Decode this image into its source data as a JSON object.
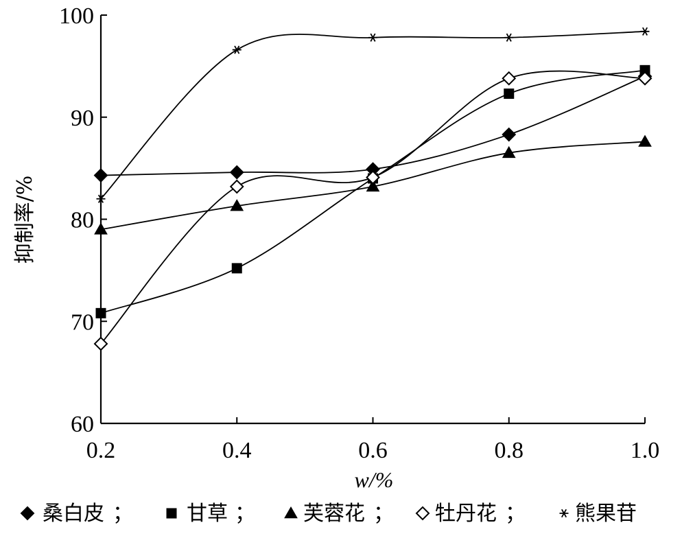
{
  "chart_data": {
    "type": "line",
    "xlabel": "w/%",
    "ylabel": "抑制率/%",
    "x": [
      0.2,
      0.4,
      0.6,
      0.8,
      1.0
    ],
    "x_ticks": [
      "0.2",
      "0.4",
      "0.6",
      "0.8",
      "1.0"
    ],
    "y_ticks": [
      "60",
      "70",
      "80",
      "90",
      "100"
    ],
    "xlim": [
      0.2,
      1.0
    ],
    "ylim": [
      60,
      100
    ],
    "grid": false,
    "legend_position": "bottom",
    "series": [
      {
        "name": "桑白皮",
        "marker": "diamond-filled",
        "values": [
          84.3,
          84.6,
          84.9,
          88.3,
          94.0
        ]
      },
      {
        "name": "甘草",
        "marker": "square-filled",
        "values": [
          70.8,
          75.2,
          84.0,
          92.3,
          94.6
        ]
      },
      {
        "name": "芙蓉花",
        "marker": "triangle-filled",
        "values": [
          79.0,
          81.3,
          83.2,
          86.5,
          87.6
        ]
      },
      {
        "name": "牡丹花",
        "marker": "diamond-open",
        "values": [
          67.8,
          83.2,
          84.1,
          93.8,
          93.8
        ]
      },
      {
        "name": "熊果苷",
        "marker": "asterisk",
        "values": [
          82.0,
          96.6,
          97.8,
          97.8,
          98.4
        ]
      }
    ],
    "legend_separator": "；",
    "colors": {
      "line": "#000000",
      "marker": "#000000",
      "background": "#ffffff"
    }
  }
}
